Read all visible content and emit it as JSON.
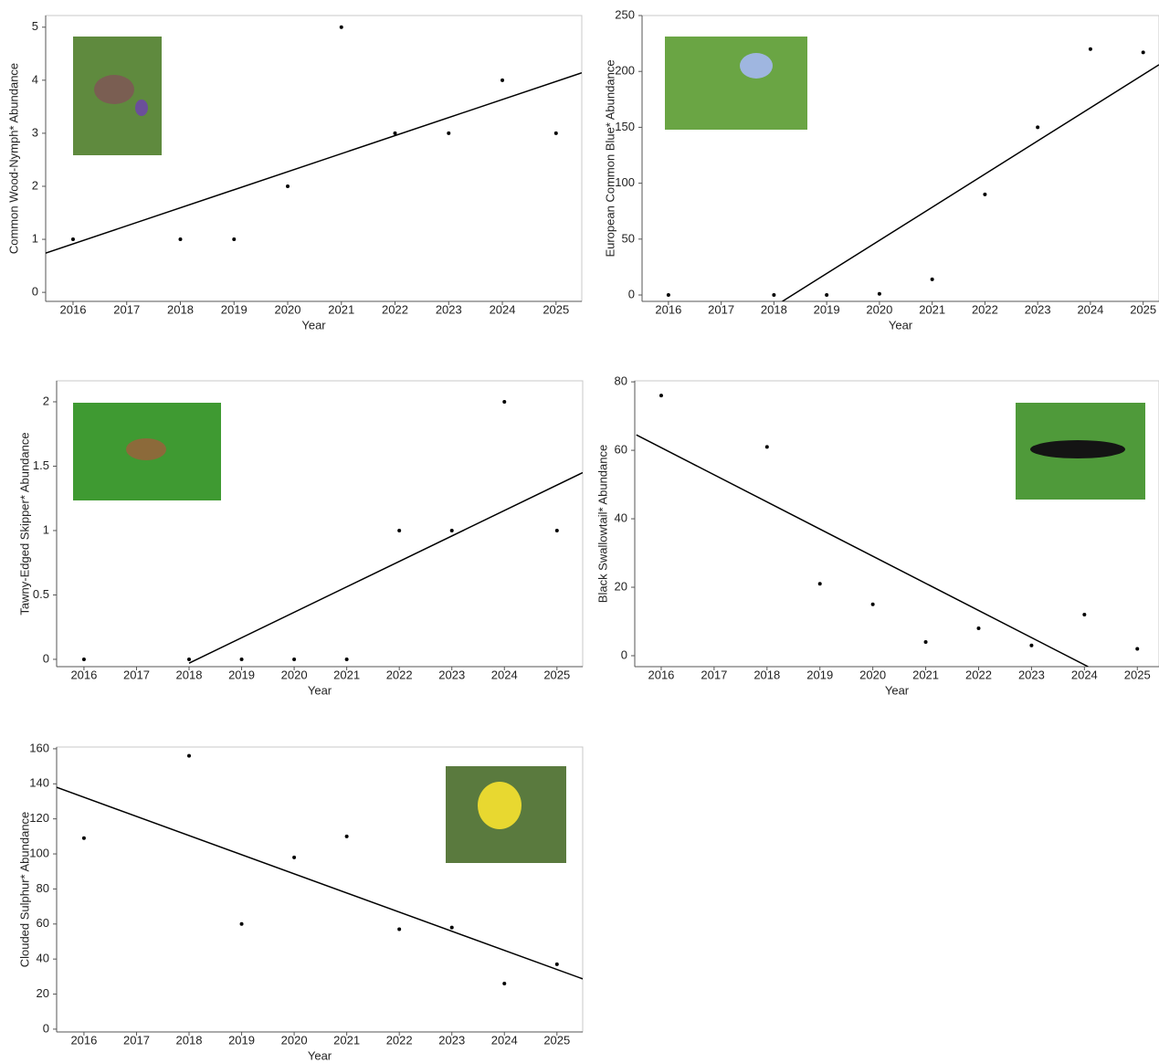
{
  "chart_data": [
    {
      "type": "scatter",
      "xlabel": "Year",
      "ylabel": "Common Wood-Nymph* Abundance",
      "color": "#000000",
      "x": [
        2016,
        2018,
        2019,
        2020,
        2021,
        2022,
        2023,
        2024,
        2025
      ],
      "values": [
        1,
        1,
        1,
        2,
        5,
        3,
        3,
        4,
        3
      ],
      "xlim": [
        2015.49,
        2025.48
      ],
      "ylim": [
        -0.17,
        5.22
      ],
      "xticks": [
        2016,
        2017,
        2018,
        2019,
        2020,
        2021,
        2022,
        2023,
        2024,
        2025
      ],
      "yticks": [
        0,
        1,
        2,
        3,
        4,
        5
      ],
      "trendline": {
        "x": [
          2015.49,
          2025.48
        ],
        "values": [
          0.74,
          4.14
        ]
      }
    },
    {
      "type": "scatter",
      "xlabel": "Year",
      "ylabel": "European Common Blue* Abundance",
      "color": "#000000",
      "x": [
        2016,
        2018,
        2019,
        2020,
        2021,
        2022,
        2023,
        2024,
        2025
      ],
      "values": [
        0,
        0,
        0,
        1,
        14,
        90,
        150,
        220,
        217
      ],
      "xlim": [
        2015.5,
        2025.3
      ],
      "ylim": [
        -5.7,
        250
      ],
      "xticks": [
        2016,
        2017,
        2018,
        2019,
        2020,
        2021,
        2022,
        2023,
        2024,
        2025
      ],
      "yticks": [
        0,
        50,
        100,
        150,
        200,
        250
      ],
      "trendline": {
        "x": [
          2018.16,
          2025.3
        ],
        "values": [
          -5.7,
          206
        ]
      }
    },
    {
      "type": "scatter",
      "xlabel": "Year",
      "ylabel": "Tawny-Edged Skipper* Abundance",
      "color": "#000000",
      "x": [
        2016,
        2018,
        2019,
        2020,
        2021,
        2022,
        2023,
        2024,
        2025
      ],
      "values": [
        0,
        0,
        0,
        0,
        0,
        1,
        1,
        2,
        1
      ],
      "xlim": [
        2015.48,
        2025.49
      ],
      "ylim": [
        -0.057,
        2.163
      ],
      "xticks": [
        2016,
        2017,
        2018,
        2019,
        2020,
        2021,
        2022,
        2023,
        2024,
        2025
      ],
      "yticks": [
        0,
        0.5,
        1,
        1.5,
        2
      ],
      "trendline": {
        "x": [
          2018.0,
          2025.49
        ],
        "values": [
          -0.03,
          1.45
        ]
      }
    },
    {
      "type": "scatter",
      "xlabel": "Year",
      "ylabel": "Black Swallowtail* Abundance",
      "color": "#000000",
      "x": [
        2016,
        2018,
        2019,
        2020,
        2021,
        2022,
        2023,
        2024,
        2025
      ],
      "values": [
        76,
        61,
        21,
        15,
        4,
        8,
        3,
        12,
        2
      ],
      "xlim": [
        2015.5,
        2025.41
      ],
      "ylim": [
        -3.2,
        80.3
      ],
      "xticks": [
        2016,
        2017,
        2018,
        2019,
        2020,
        2021,
        2022,
        2023,
        2024,
        2025
      ],
      "yticks": [
        0,
        20,
        40,
        60,
        80
      ],
      "trendline": {
        "x": [
          2015.53,
          2024.07
        ],
        "values": [
          64.5,
          -3.2
        ]
      }
    },
    {
      "type": "scatter",
      "xlabel": "Year",
      "ylabel": "Clouded Sulphur* Abundance",
      "color": "#000000",
      "x": [
        2016,
        2018,
        2019,
        2020,
        2021,
        2022,
        2023,
        2024,
        2025
      ],
      "values": [
        109,
        156,
        60,
        98,
        110,
        57,
        58,
        26,
        37
      ],
      "xlim": [
        2015.48,
        2025.49
      ],
      "ylim": [
        -1.6,
        161
      ],
      "xticks": [
        2016,
        2017,
        2018,
        2019,
        2020,
        2021,
        2022,
        2023,
        2024,
        2025
      ],
      "yticks": [
        0,
        20,
        40,
        60,
        80,
        100,
        120,
        140,
        160
      ],
      "trendline": {
        "x": [
          2015.48,
          2025.49
        ],
        "values": [
          138,
          28.7
        ]
      }
    }
  ]
}
